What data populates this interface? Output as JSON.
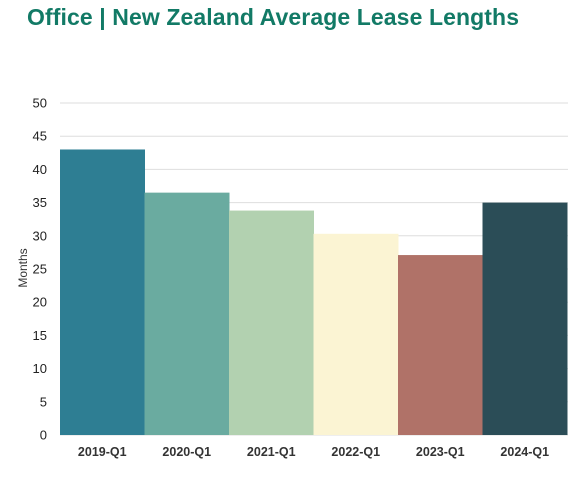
{
  "chart_data": {
    "type": "bar",
    "title": "Office | New Zealand Average Lease Lengths",
    "xlabel": "",
    "ylabel": "Months",
    "categories": [
      "2019-Q1",
      "2020-Q1",
      "2021-Q1",
      "2022-Q1",
      "2023-Q1",
      "2024-Q1"
    ],
    "values": [
      43,
      36.5,
      33.8,
      30.3,
      27.1,
      35
    ],
    "colors": [
      "#2e7e93",
      "#6aaba0",
      "#b2d1b0",
      "#fbf4d3",
      "#b07268",
      "#2b4d57"
    ],
    "ylim": [
      0,
      50
    ],
    "yticks": [
      0,
      5,
      10,
      15,
      20,
      25,
      30,
      35,
      40,
      45,
      50
    ],
    "grid": true,
    "legend": "none"
  }
}
